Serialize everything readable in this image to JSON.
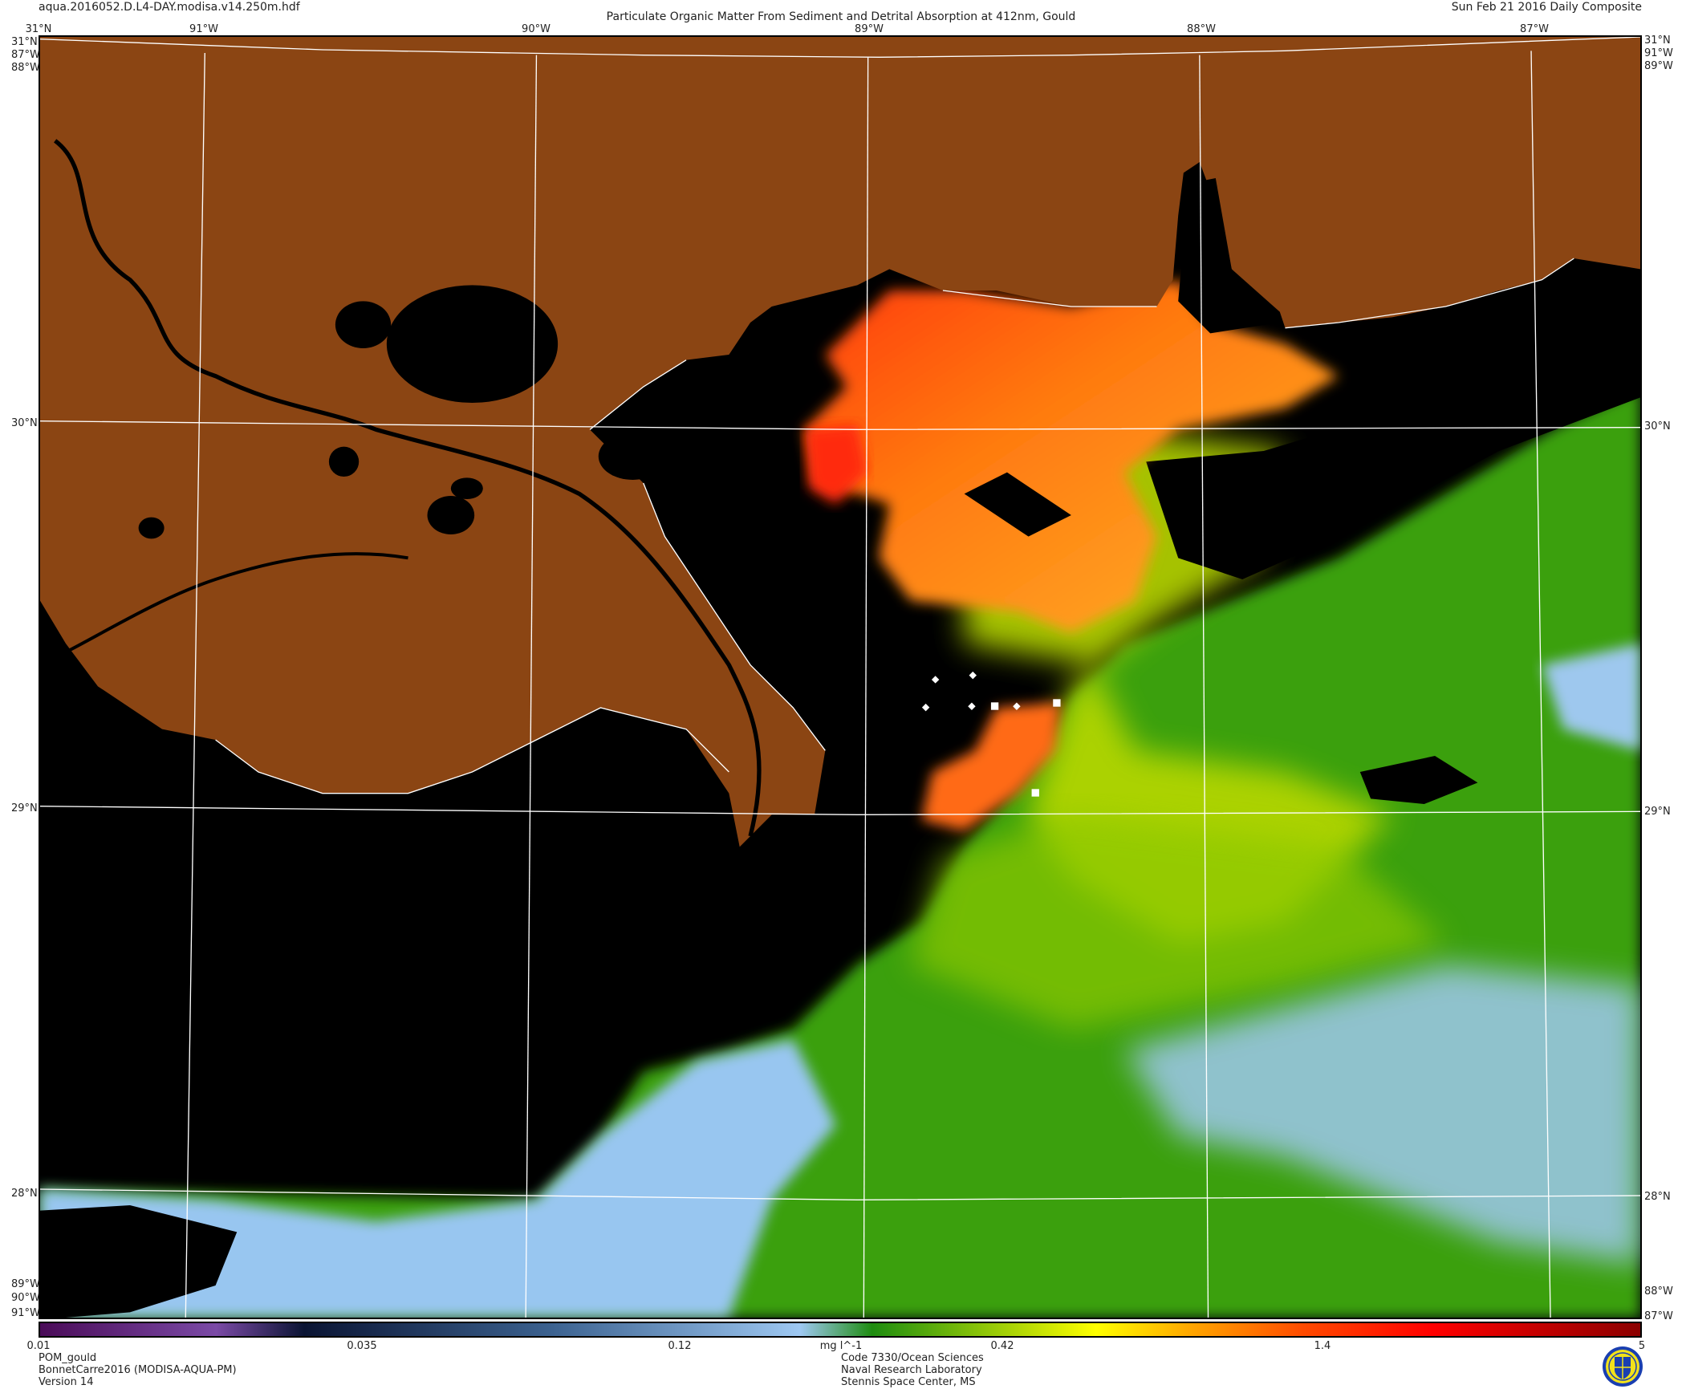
{
  "header": {
    "filename": "aqua.2016052.D.L4-DAY.modisa.v14.250m.hdf",
    "title": "Particulate Organic Matter From Sediment and Detrital Absorption at 412nm, Gould",
    "date": "Sun Feb 21 2016 Daily Composite"
  },
  "map": {
    "top_lon_labels": [
      "31°N",
      "91°W",
      "90°W",
      "89°W",
      "88°W",
      "87°W"
    ],
    "left_labels": [
      "31°N",
      "87°W",
      "88°W",
      "30°N",
      "29°N",
      "28°N",
      "89°W",
      "90°W",
      "91°W"
    ],
    "right_labels": [
      "31°N",
      "91°W",
      "89°W",
      "30°N",
      "29°N",
      "28°N",
      "88°W",
      "87°W"
    ],
    "colors": {
      "land": "#8b4513",
      "no_data": "#000000",
      "grid": "#ffffff"
    }
  },
  "colorbar": {
    "scale": "log",
    "range": [
      0.01,
      5
    ],
    "ticks": [
      "0.01",
      "0.035",
      "0.12",
      "0.42",
      "1.4",
      "5"
    ],
    "unit": "mg l^-1",
    "colors": [
      "#4a0b58",
      "#7b4aa6",
      "#0a1433",
      "#3c6290",
      "#9ec8f2",
      "#1e8c10",
      "#ffff00",
      "#ffa500",
      "#ff4a00",
      "#ff0000",
      "#8b0000"
    ]
  },
  "footer": {
    "left": [
      "POM_gould",
      "BonnetCarre2016 (MODISA-AQUA-PM)",
      "Version 14"
    ],
    "right": [
      "Code 7330/Ocean Sciences",
      "Naval Research Laboratory",
      "Stennis Space Center, MS"
    ]
  }
}
